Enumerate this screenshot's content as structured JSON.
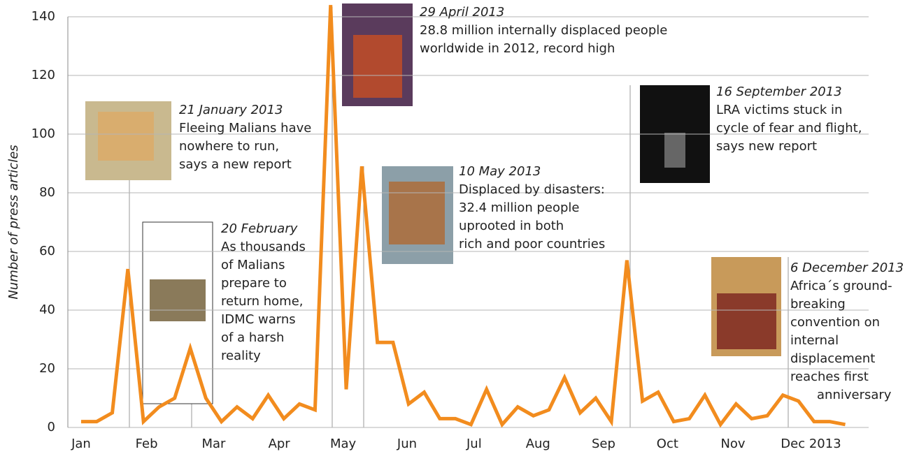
{
  "chart_data": {
    "type": "line",
    "y_label": "Number of press articles",
    "color": "#f28c1e",
    "grid": true,
    "x": [
      0,
      1,
      2,
      3,
      4,
      5,
      6,
      7,
      8,
      9,
      10,
      11,
      12,
      13,
      14,
      15,
      16,
      17,
      18,
      19,
      20,
      21,
      22,
      23,
      24,
      25,
      26,
      27,
      28,
      29,
      30,
      31,
      32,
      33,
      34,
      35,
      36,
      37,
      38,
      39,
      40,
      41,
      42,
      43,
      44,
      45,
      46,
      47,
      48,
      49
    ],
    "values": [
      2,
      2,
      5,
      54,
      2,
      7,
      10,
      27,
      10,
      2,
      7,
      3,
      11,
      3,
      8,
      6,
      144,
      13,
      89,
      29,
      29,
      8,
      12,
      3,
      3,
      1,
      13,
      1,
      7,
      4,
      6,
      17,
      5,
      10,
      2,
      57,
      9,
      12,
      2,
      3,
      11,
      1,
      8,
      3,
      4,
      11,
      9,
      2,
      2,
      1
    ],
    "xlim": [
      -0.85,
      50.5
    ],
    "xticks": [
      {
        "value": 0,
        "label": "Jan"
      },
      {
        "value": 4.2,
        "label": "Feb"
      },
      {
        "value": 8.5,
        "label": "Mar"
      },
      {
        "value": 12.7,
        "label": "Apr"
      },
      {
        "value": 16.8,
        "label": "May"
      },
      {
        "value": 20.9,
        "label": "Jun"
      },
      {
        "value": 25.2,
        "label": "Jul"
      },
      {
        "value": 29.3,
        "label": "Aug"
      },
      {
        "value": 33.5,
        "label": "Sep"
      },
      {
        "value": 37.6,
        "label": "Oct"
      },
      {
        "value": 41.8,
        "label": "Nov"
      },
      {
        "value": 46.8,
        "label": "Dec 2013"
      }
    ],
    "ylim": [
      0,
      140
    ],
    "yticks": [
      0,
      20,
      40,
      60,
      80,
      100,
      120,
      140
    ],
    "annotations": [
      {
        "date": "21 January 2013",
        "lines": [
          "Fleeing Malians have",
          "nowhere to run,",
          "says a new report"
        ]
      },
      {
        "date": "20 February",
        "lines": [
          "As thousands",
          "of Malians",
          "prepare to",
          "return home,",
          "IDMC warns",
          "of a harsh",
          "reality"
        ]
      },
      {
        "date": "29 April 2013",
        "lines": [
          "28.8 million internally displaced people",
          "worldwide in 2012, record high"
        ]
      },
      {
        "date": "10 May 2013",
        "lines": [
          "Displaced by disasters:",
          "32.4 million people",
          "uprooted in both",
          "rich and poor countries"
        ]
      },
      {
        "date": "16 September 2013",
        "lines": [
          "LRA victims stuck in",
          "cycle of fear and flight,",
          "says new report"
        ]
      },
      {
        "date": "6 December 2013",
        "lines": [
          "Africa´s ground-",
          "breaking",
          "convention on",
          "internal",
          "displacement",
          "reaches first",
          "anniversary"
        ]
      }
    ]
  }
}
